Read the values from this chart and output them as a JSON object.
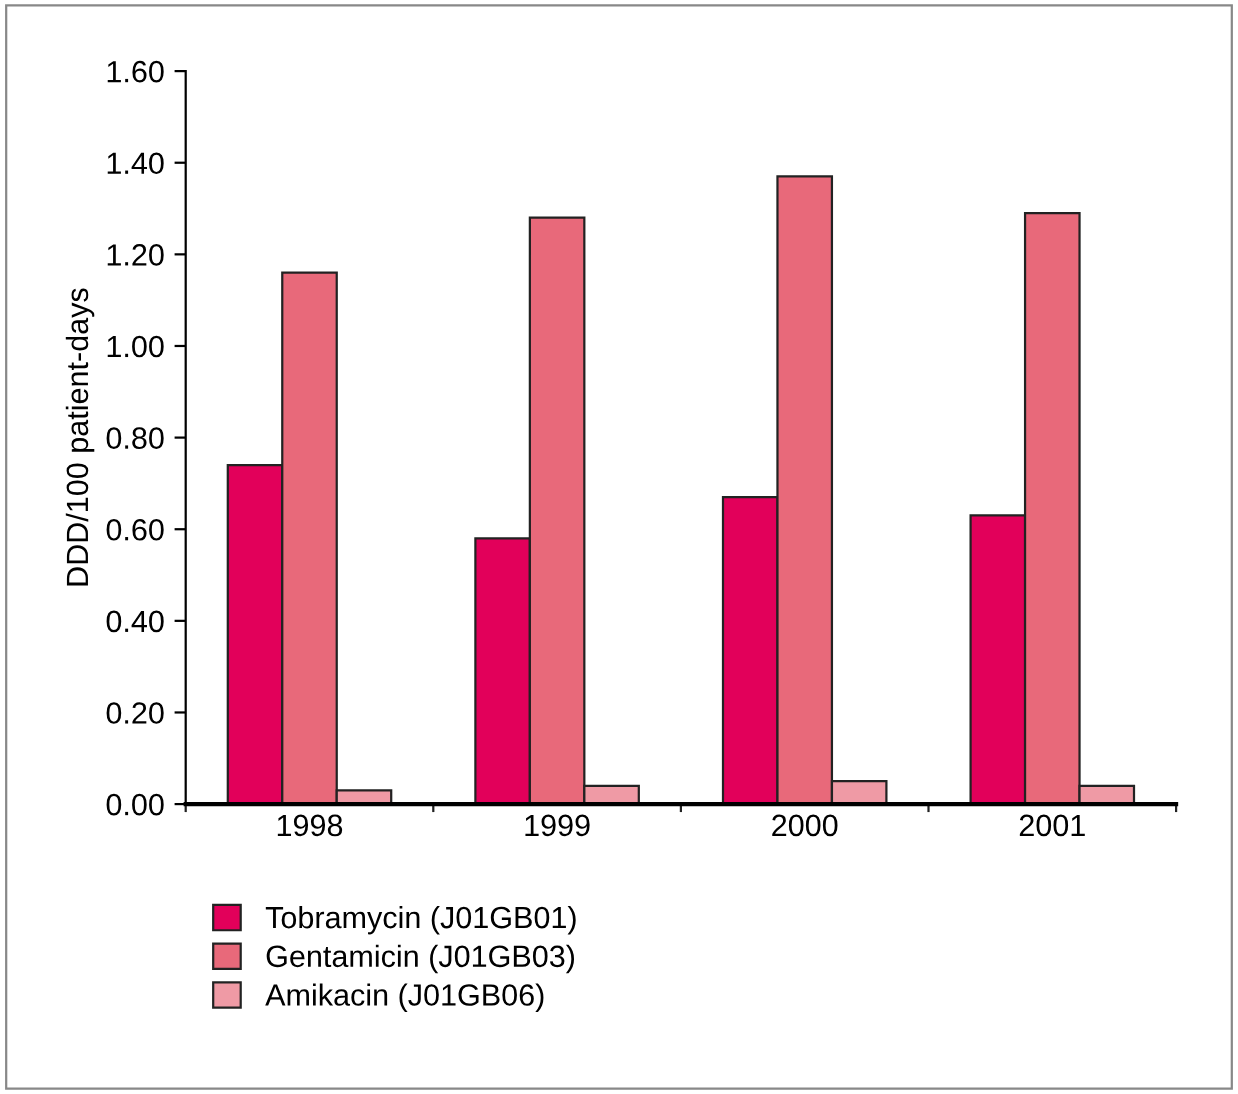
{
  "chart_data": {
    "type": "bar",
    "ylabel": "DDD/100 patient-days",
    "categories": [
      "1998",
      "1999",
      "2000",
      "2001"
    ],
    "series": [
      {
        "name": "Tobramycin (J01GB01)",
        "color": "#e2005a",
        "values": [
          0.74,
          0.58,
          0.67,
          0.63
        ]
      },
      {
        "name": "Gentamicin (J01GB03)",
        "color": "#e8697a",
        "values": [
          1.16,
          1.28,
          1.37,
          1.29
        ]
      },
      {
        "name": "Amikacin (J01GB06)",
        "color": "#ef9aa5",
        "values": [
          0.03,
          0.04,
          0.05,
          0.04
        ]
      }
    ],
    "ylim": [
      0,
      1.6
    ],
    "yticks": [
      {
        "value": 0,
        "label": "0.00"
      },
      {
        "value": 0.2,
        "label": "0.20"
      },
      {
        "value": 0.4,
        "label": "0.40"
      },
      {
        "value": 0.6,
        "label": "0.60"
      },
      {
        "value": 0.8,
        "label": "0.80"
      },
      {
        "value": 1,
        "label": "1.00"
      },
      {
        "value": 1.2,
        "label": "1.20"
      },
      {
        "value": 1.4,
        "label": "1.40"
      },
      {
        "value": 1.6,
        "label": "1.60"
      }
    ],
    "grid": false,
    "legend": "bottom left"
  }
}
